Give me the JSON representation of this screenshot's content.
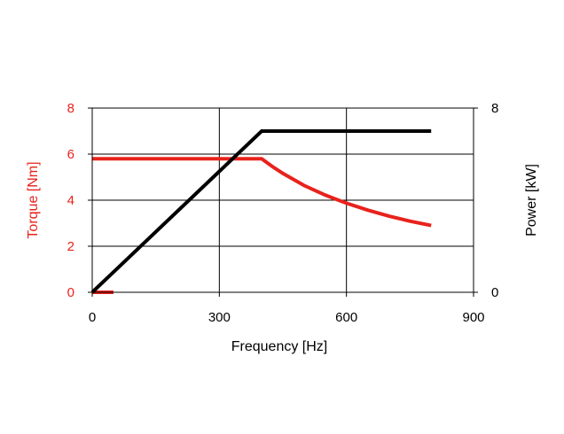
{
  "chart_data": {
    "type": "line",
    "title": "",
    "xlabel": "Frequency [Hz]",
    "ylabel_left": "Torque [Nm]",
    "ylabel_right": "Power [kW]",
    "xlim": [
      0,
      900
    ],
    "ylim_left": [
      0,
      8
    ],
    "ylim_right": [
      0,
      8
    ],
    "x_ticks": [
      "0",
      "300",
      "600",
      "900"
    ],
    "y_ticks_left": [
      "0",
      "2",
      "4",
      "6",
      "8"
    ],
    "y_ticks_right": [
      "0",
      "8"
    ],
    "grid": true,
    "series": [
      {
        "axis": "left",
        "color": "#e8221c",
        "x": [
          0,
          50
        ],
        "y": [
          0,
          0
        ]
      },
      {
        "axis": "left",
        "color": "#e8221c",
        "x": [
          0,
          400,
          425,
          450,
          500,
          550,
          600,
          650,
          700,
          750,
          800
        ],
        "y": [
          5.8,
          5.8,
          5.46,
          5.16,
          4.64,
          4.22,
          3.87,
          3.57,
          3.31,
          3.09,
          2.9
        ]
      },
      {
        "axis": "right",
        "color": "#000000",
        "x": [
          0,
          400,
          800
        ],
        "y": [
          0,
          7,
          7
        ]
      }
    ]
  },
  "colors": {
    "torque": "#e8221c",
    "power": "#000000",
    "grid": "#000000"
  }
}
